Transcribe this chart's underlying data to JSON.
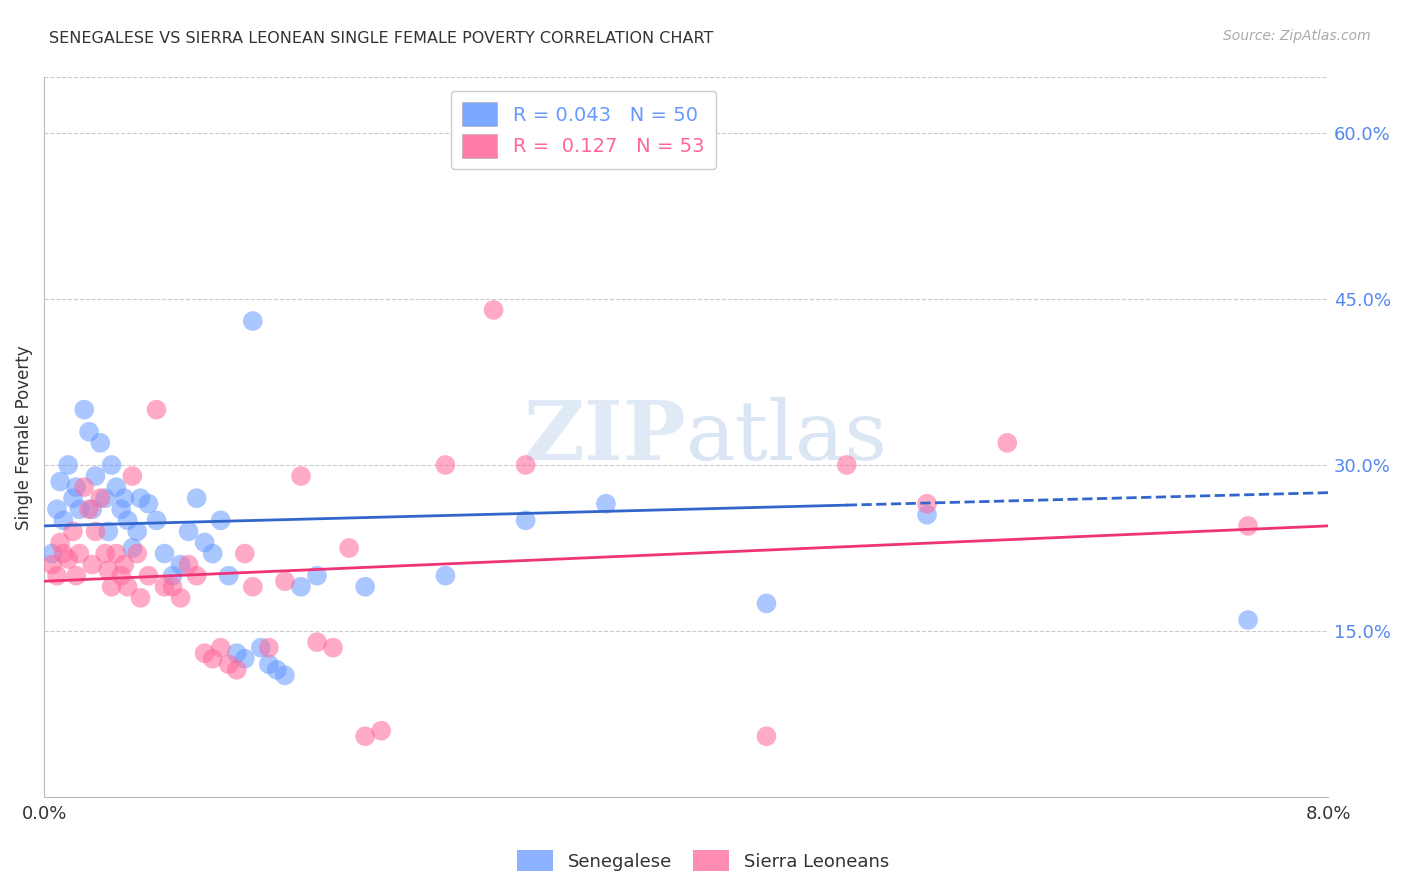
{
  "title": "SENEGALESE VS SIERRA LEONEAN SINGLE FEMALE POVERTY CORRELATION CHART",
  "source": "Source: ZipAtlas.com",
  "ylabel": "Single Female Poverty",
  "right_yticks": [
    15.0,
    30.0,
    45.0,
    60.0
  ],
  "xlim": [
    0.0,
    8.0
  ],
  "ylim": [
    0.0,
    65.0
  ],
  "watermark": "ZIPatlas",
  "senegalese_color": "#6699ff",
  "sierraleone_color": "#ff6699",
  "trend_blue_color": "#3366cc",
  "trend_pink_color": "#ee3377",
  "senegalese_R": 0.043,
  "senegalese_N": 50,
  "sierraleone_R": 0.127,
  "sierraleone_N": 53,
  "senegalese_points": [
    [
      0.05,
      22.0
    ],
    [
      0.08,
      26.0
    ],
    [
      0.1,
      28.5
    ],
    [
      0.12,
      25.0
    ],
    [
      0.15,
      30.0
    ],
    [
      0.18,
      27.0
    ],
    [
      0.2,
      28.0
    ],
    [
      0.22,
      26.0
    ],
    [
      0.25,
      35.0
    ],
    [
      0.28,
      33.0
    ],
    [
      0.3,
      26.0
    ],
    [
      0.32,
      29.0
    ],
    [
      0.35,
      32.0
    ],
    [
      0.38,
      27.0
    ],
    [
      0.4,
      24.0
    ],
    [
      0.42,
      30.0
    ],
    [
      0.45,
      28.0
    ],
    [
      0.48,
      26.0
    ],
    [
      0.5,
      27.0
    ],
    [
      0.52,
      25.0
    ],
    [
      0.55,
      22.5
    ],
    [
      0.58,
      24.0
    ],
    [
      0.6,
      27.0
    ],
    [
      0.65,
      26.5
    ],
    [
      0.7,
      25.0
    ],
    [
      0.75,
      22.0
    ],
    [
      0.8,
      20.0
    ],
    [
      0.85,
      21.0
    ],
    [
      0.9,
      24.0
    ],
    [
      0.95,
      27.0
    ],
    [
      1.0,
      23.0
    ],
    [
      1.05,
      22.0
    ],
    [
      1.1,
      25.0
    ],
    [
      1.15,
      20.0
    ],
    [
      1.2,
      13.0
    ],
    [
      1.25,
      12.5
    ],
    [
      1.3,
      43.0
    ],
    [
      1.35,
      13.5
    ],
    [
      1.4,
      12.0
    ],
    [
      1.45,
      11.5
    ],
    [
      1.5,
      11.0
    ],
    [
      1.6,
      19.0
    ],
    [
      1.7,
      20.0
    ],
    [
      2.0,
      19.0
    ],
    [
      2.5,
      20.0
    ],
    [
      3.0,
      25.0
    ],
    [
      3.5,
      26.5
    ],
    [
      4.5,
      17.5
    ],
    [
      5.5,
      25.5
    ],
    [
      7.5,
      16.0
    ]
  ],
  "sierraleone_points": [
    [
      0.05,
      21.0
    ],
    [
      0.08,
      20.0
    ],
    [
      0.1,
      23.0
    ],
    [
      0.12,
      22.0
    ],
    [
      0.15,
      21.5
    ],
    [
      0.18,
      24.0
    ],
    [
      0.2,
      20.0
    ],
    [
      0.22,
      22.0
    ],
    [
      0.25,
      28.0
    ],
    [
      0.28,
      26.0
    ],
    [
      0.3,
      21.0
    ],
    [
      0.32,
      24.0
    ],
    [
      0.35,
      27.0
    ],
    [
      0.38,
      22.0
    ],
    [
      0.4,
      20.5
    ],
    [
      0.42,
      19.0
    ],
    [
      0.45,
      22.0
    ],
    [
      0.48,
      20.0
    ],
    [
      0.5,
      21.0
    ],
    [
      0.52,
      19.0
    ],
    [
      0.55,
      29.0
    ],
    [
      0.58,
      22.0
    ],
    [
      0.6,
      18.0
    ],
    [
      0.65,
      20.0
    ],
    [
      0.7,
      35.0
    ],
    [
      0.75,
      19.0
    ],
    [
      0.8,
      19.0
    ],
    [
      0.85,
      18.0
    ],
    [
      0.9,
      21.0
    ],
    [
      0.95,
      20.0
    ],
    [
      1.0,
      13.0
    ],
    [
      1.05,
      12.5
    ],
    [
      1.1,
      13.5
    ],
    [
      1.15,
      12.0
    ],
    [
      1.2,
      11.5
    ],
    [
      1.25,
      22.0
    ],
    [
      1.3,
      19.0
    ],
    [
      1.4,
      13.5
    ],
    [
      1.5,
      19.5
    ],
    [
      1.6,
      29.0
    ],
    [
      1.7,
      14.0
    ],
    [
      1.8,
      13.5
    ],
    [
      1.9,
      22.5
    ],
    [
      2.0,
      5.5
    ],
    [
      2.1,
      6.0
    ],
    [
      2.5,
      30.0
    ],
    [
      2.8,
      44.0
    ],
    [
      3.0,
      30.0
    ],
    [
      4.5,
      5.5
    ],
    [
      5.0,
      30.0
    ],
    [
      5.5,
      26.5
    ],
    [
      6.0,
      32.0
    ],
    [
      7.5,
      24.5
    ]
  ],
  "blue_trend_solid_end": 5.0,
  "blue_trend_x0": 0.0,
  "blue_trend_y0": 24.5,
  "blue_trend_x1": 8.0,
  "blue_trend_y1": 27.5,
  "pink_trend_x0": 0.0,
  "pink_trend_y0": 19.5,
  "pink_trend_x1": 8.0,
  "pink_trend_y1": 24.5,
  "grid_color": "#cccccc",
  "background_color": "#ffffff",
  "title_color": "#333333",
  "right_axis_color": "#5588ee"
}
